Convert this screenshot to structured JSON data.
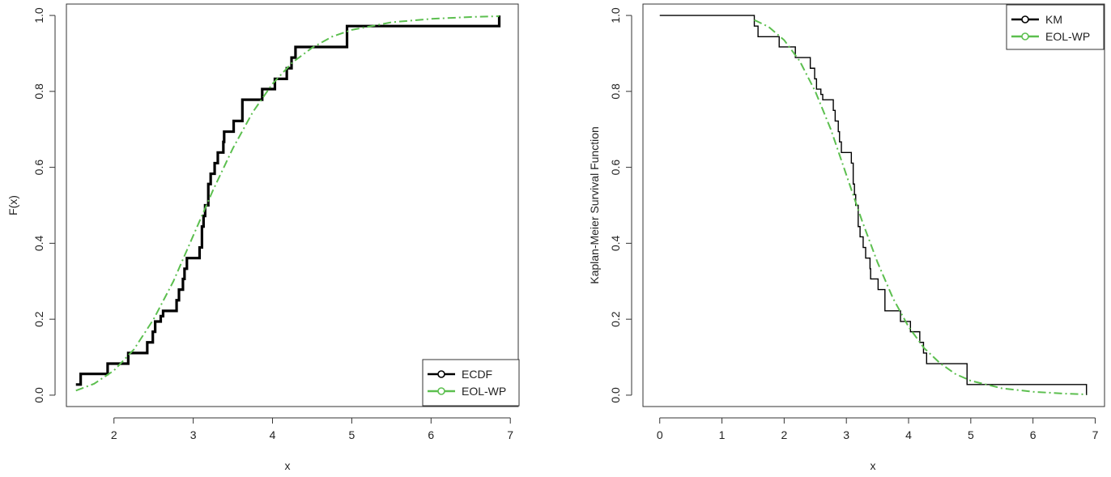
{
  "chart_data": [
    {
      "type": "line",
      "title": "",
      "xlabel": "x",
      "ylabel": "F(x)",
      "xlim": [
        1.4,
        7.1
      ],
      "ylim": [
        -0.03,
        1.03
      ],
      "xticks": [
        "2",
        "3",
        "4",
        "5",
        "6",
        "7"
      ],
      "yticks": [
        "0.0",
        "0.2",
        "0.4",
        "0.6",
        "0.8",
        "1.0"
      ],
      "grid": false,
      "legend_position": "bottom-right",
      "series": [
        {
          "name": "ECDF",
          "style": "step",
          "color": "#000000",
          "x": [
            1.52,
            1.58,
            1.92,
            2.18,
            2.42,
            2.49,
            2.52,
            2.59,
            2.62,
            2.79,
            2.82,
            2.87,
            2.89,
            2.92,
            3.08,
            3.11,
            3.13,
            3.15,
            3.19,
            3.22,
            3.27,
            3.31,
            3.38,
            3.39,
            3.51,
            3.62,
            3.87,
            4.03,
            4.18,
            4.24,
            4.29,
            4.94,
            6.86
          ],
          "y": [
            0.028,
            0.056,
            0.083,
            0.111,
            0.139,
            0.167,
            0.194,
            0.208,
            0.222,
            0.25,
            0.278,
            0.306,
            0.333,
            0.361,
            0.389,
            0.444,
            0.472,
            0.5,
            0.556,
            0.583,
            0.611,
            0.639,
            0.667,
            0.694,
            0.722,
            0.778,
            0.806,
            0.833,
            0.861,
            0.889,
            0.917,
            0.972,
            1.0
          ]
        },
        {
          "name": "EOL-WP",
          "style": "dotdash",
          "color": "#5cbf4f",
          "x": [
            1.52,
            1.75,
            2.0,
            2.25,
            2.5,
            2.75,
            3.0,
            3.25,
            3.5,
            3.75,
            4.0,
            4.25,
            4.5,
            4.75,
            5.0,
            5.5,
            6.0,
            6.5,
            6.86
          ],
          "y": [
            0.012,
            0.03,
            0.065,
            0.12,
            0.2,
            0.3,
            0.42,
            0.54,
            0.65,
            0.745,
            0.82,
            0.876,
            0.915,
            0.944,
            0.962,
            0.982,
            0.991,
            0.996,
            0.998
          ]
        }
      ]
    },
    {
      "type": "line",
      "title": "",
      "xlabel": "x",
      "ylabel": "Kaplan-Meier Survival Function",
      "xlim": [
        -0.27,
        7.15
      ],
      "ylim": [
        -0.03,
        1.03
      ],
      "xticks": [
        "0",
        "1",
        "2",
        "3",
        "4",
        "5",
        "6",
        "7"
      ],
      "yticks": [
        "0.0",
        "0.2",
        "0.4",
        "0.6",
        "0.8",
        "1.0"
      ],
      "grid": false,
      "legend_position": "top-right",
      "series": [
        {
          "name": "KM",
          "style": "step",
          "color": "#000000",
          "x": [
            0,
            1.52,
            1.58,
            1.92,
            2.18,
            2.42,
            2.49,
            2.52,
            2.59,
            2.62,
            2.79,
            2.82,
            2.87,
            2.89,
            2.92,
            3.08,
            3.11,
            3.13,
            3.15,
            3.19,
            3.22,
            3.27,
            3.31,
            3.38,
            3.39,
            3.51,
            3.62,
            3.87,
            4.03,
            4.18,
            4.24,
            4.29,
            4.94,
            6.86
          ],
          "y": [
            1.0,
            0.972,
            0.944,
            0.917,
            0.889,
            0.861,
            0.833,
            0.806,
            0.792,
            0.778,
            0.75,
            0.722,
            0.694,
            0.667,
            0.639,
            0.611,
            0.556,
            0.528,
            0.5,
            0.444,
            0.417,
            0.389,
            0.361,
            0.333,
            0.306,
            0.278,
            0.222,
            0.194,
            0.167,
            0.139,
            0.111,
            0.083,
            0.028,
            0.0
          ]
        },
        {
          "name": "EOL-WP",
          "style": "dotdash",
          "color": "#5cbf4f",
          "x": [
            1.52,
            1.75,
            2.0,
            2.25,
            2.5,
            2.75,
            3.0,
            3.25,
            3.5,
            3.75,
            4.0,
            4.25,
            4.5,
            4.75,
            5.0,
            5.5,
            6.0,
            6.5,
            6.86
          ],
          "y": [
            0.988,
            0.97,
            0.935,
            0.88,
            0.8,
            0.7,
            0.58,
            0.46,
            0.35,
            0.255,
            0.18,
            0.124,
            0.085,
            0.056,
            0.038,
            0.018,
            0.009,
            0.004,
            0.002
          ]
        }
      ]
    }
  ]
}
